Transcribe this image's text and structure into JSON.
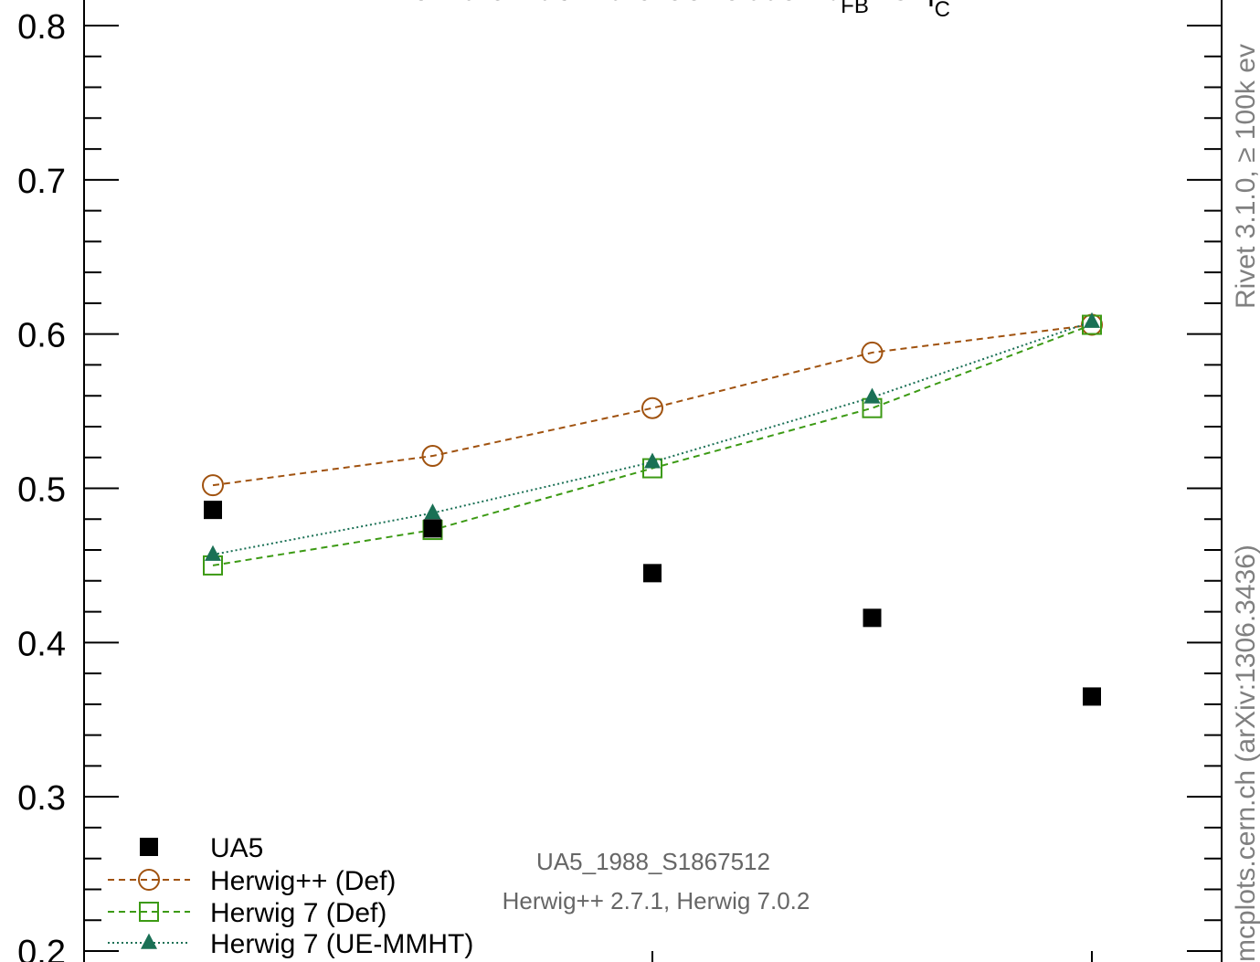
{
  "chart_data": {
    "type": "scatter",
    "title_main": "Forward-Backward Correlation b",
    "title_sub1": "FB",
    "title_mid": " vs η",
    "title_sub2": "C",
    "ylim": [
      0.2,
      0.8
    ],
    "yticks": [
      "0.2",
      "0.3",
      "0.4",
      "0.5",
      "0.6",
      "0.7",
      "0.8"
    ],
    "x": [
      1,
      2,
      3,
      4,
      5
    ],
    "series": [
      {
        "name": "UA5",
        "color": "#000000",
        "marker": "filled-square",
        "line": "none",
        "values": [
          0.486,
          0.474,
          0.445,
          0.416,
          0.365
        ]
      },
      {
        "name": "Herwig++ (Def)",
        "color": "#a0520f",
        "marker": "open-circle",
        "line": "dashed",
        "values": [
          0.502,
          0.521,
          0.552,
          0.588,
          0.606
        ]
      },
      {
        "name": "Herwig 7 (Def)",
        "color": "#3c9a14",
        "marker": "open-square",
        "line": "dashed",
        "values": [
          0.45,
          0.473,
          0.513,
          0.552,
          0.606
        ]
      },
      {
        "name": "Herwig 7 (UE-MMHT)",
        "color": "#1a7055",
        "marker": "filled-triangle",
        "line": "dotted",
        "values": [
          0.457,
          0.484,
          0.517,
          0.559,
          0.608
        ]
      }
    ],
    "analysis_id": "UA5_1988_S1867512",
    "generator_versions": "Herwig++ 2.7.1, Herwig 7.0.2",
    "side_text_top": "Rivet 3.1.0, ≥ 100k ev",
    "side_text_bottom": "mcplots.cern.ch (arXiv:1306.3436)"
  }
}
